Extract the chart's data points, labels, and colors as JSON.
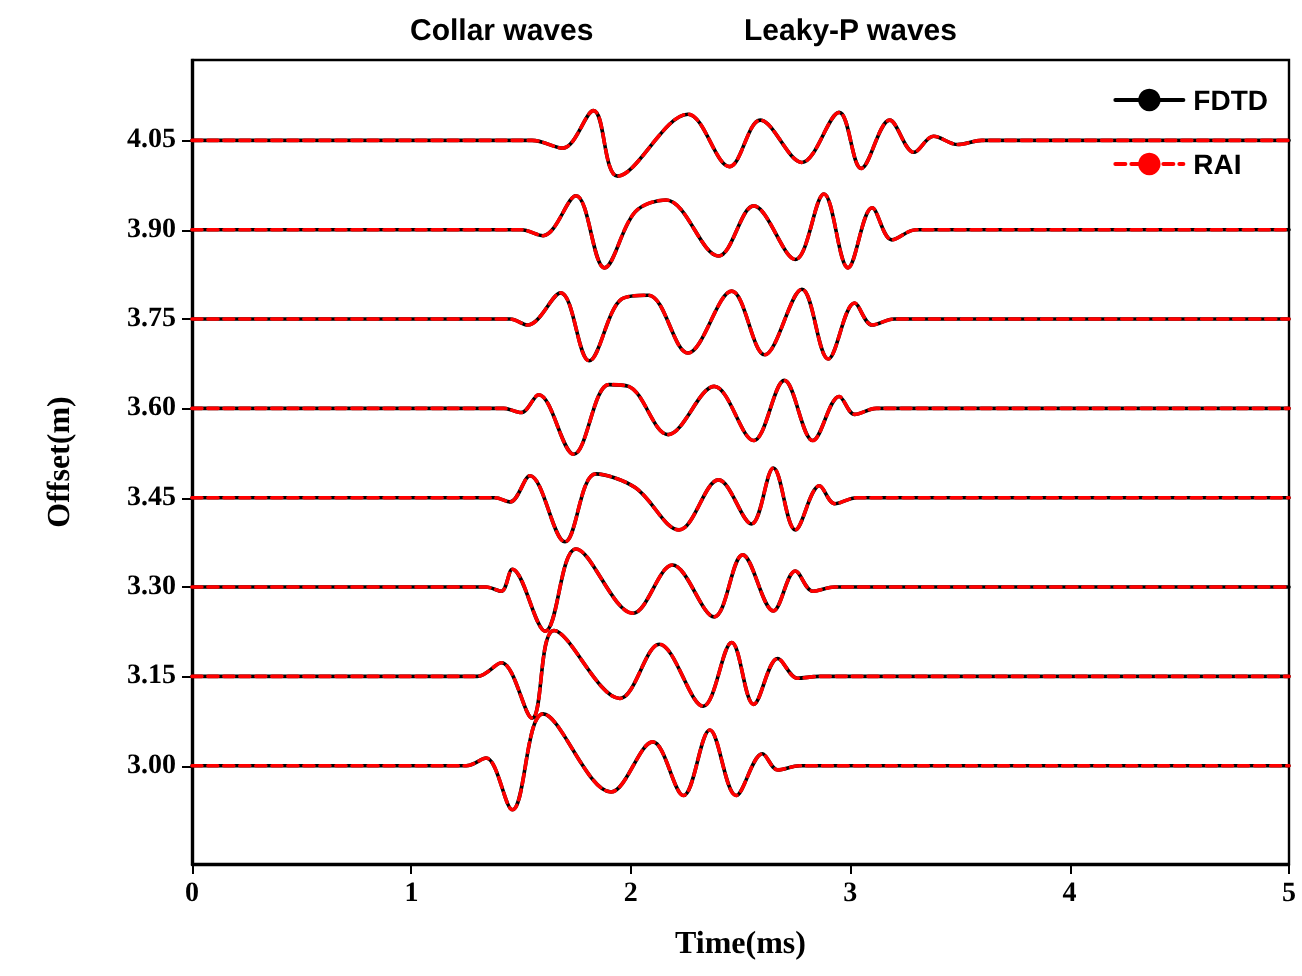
{
  "chart_data": {
    "type": "line",
    "xlabel": "Time(ms)",
    "ylabel": "Offset(m)",
    "annotations": [
      "Collar waves",
      "Leaky-P waves"
    ],
    "xlim": [
      0,
      5
    ],
    "xticks": [
      0,
      1,
      2,
      3,
      4,
      5
    ],
    "ylim": [
      2.835,
      4.185
    ],
    "yticks": [
      {
        "value": 3,
        "label": "3.00"
      },
      {
        "value": 3.15,
        "label": "3.15"
      },
      {
        "value": 3.3,
        "label": "3.30"
      },
      {
        "value": 3.45,
        "label": "3.45"
      },
      {
        "value": 3.6,
        "label": "3.60"
      },
      {
        "value": 3.75,
        "label": "3.75"
      },
      {
        "value": 3.9,
        "label": "3.90"
      },
      {
        "value": 4.05,
        "label": "4.05"
      }
    ],
    "grid": false,
    "legend": "top right",
    "marker": "none",
    "series": [
      {
        "name": "FDTD",
        "color": "#000000",
        "line_style": "solid",
        "x": [
          0,
          1.55,
          1.69,
          1.83,
          1.94,
          2.26,
          2.45,
          2.59,
          2.78,
          2.95,
          3.05,
          3.18,
          3.29,
          3.38,
          3.49,
          3.6,
          5,
          null,
          0,
          1.5,
          1.6,
          1.75,
          1.88,
          2.02,
          2.16,
          2.4,
          2.56,
          2.75,
          2.88,
          2.99,
          3.1,
          3.19,
          3.3,
          5,
          null,
          0,
          1.45,
          1.53,
          1.68,
          1.81,
          1.96,
          2.08,
          2.26,
          2.46,
          2.61,
          2.78,
          2.9,
          3.02,
          3.1,
          3.2,
          5,
          null,
          0,
          1.42,
          1.5,
          1.58,
          1.74,
          1.9,
          1.99,
          2.17,
          2.38,
          2.56,
          2.7,
          2.83,
          2.95,
          3.02,
          3.12,
          5,
          null,
          0,
          1.38,
          1.45,
          1.54,
          1.7,
          1.84,
          2.02,
          2.22,
          2.4,
          2.55,
          2.65,
          2.75,
          2.86,
          2.93,
          3.03,
          5,
          null,
          0,
          1.34,
          1.41,
          1.46,
          1.61,
          1.75,
          2.01,
          2.19,
          2.38,
          2.51,
          2.65,
          2.75,
          2.83,
          2.93,
          5,
          null,
          0,
          1.3,
          1.41,
          1.55,
          1.65,
          1.95,
          2.13,
          2.33,
          2.46,
          2.56,
          2.67,
          2.76,
          2.86,
          5,
          null,
          0,
          1.25,
          1.34,
          1.46,
          1.6,
          1.91,
          2.1,
          2.24,
          2.36,
          2.48,
          2.6,
          2.67,
          2.77,
          5
        ],
        "values": [
          4.05,
          4.05,
          4.037,
          4.1,
          3.99,
          4.094,
          4.006,
          4.084,
          4.013,
          4.097,
          4.003,
          4.084,
          4.03,
          4.057,
          4.043,
          4.05,
          4.05,
          null,
          3.9,
          3.9,
          3.89,
          3.957,
          3.836,
          3.93,
          3.95,
          3.856,
          3.94,
          3.85,
          3.96,
          3.836,
          3.937,
          3.883,
          3.9,
          3.9,
          null,
          3.75,
          3.75,
          3.74,
          3.794,
          3.68,
          3.784,
          3.79,
          3.693,
          3.797,
          3.69,
          3.8,
          3.683,
          3.777,
          3.74,
          3.75,
          3.75,
          null,
          3.6,
          3.6,
          3.593,
          3.623,
          3.523,
          3.64,
          3.637,
          3.556,
          3.637,
          3.546,
          3.647,
          3.546,
          3.62,
          3.59,
          3.6,
          3.6,
          null,
          3.45,
          3.45,
          3.443,
          3.487,
          3.376,
          3.49,
          3.467,
          3.396,
          3.48,
          3.406,
          3.5,
          3.396,
          3.47,
          3.44,
          3.45,
          3.45,
          null,
          3.3,
          3.3,
          3.293,
          3.33,
          3.226,
          3.364,
          3.256,
          3.337,
          3.25,
          3.354,
          3.26,
          3.327,
          3.293,
          3.3,
          3.3,
          null,
          3.15,
          3.15,
          3.173,
          3.08,
          3.227,
          3.113,
          3.204,
          3.1,
          3.207,
          3.103,
          3.18,
          3.147,
          3.15,
          3.15,
          null,
          3,
          3,
          3.013,
          2.926,
          3.087,
          2.956,
          3.04,
          2.95,
          3.06,
          2.95,
          3.02,
          2.993,
          3,
          3
        ]
      },
      {
        "name": "RAI",
        "color": "#ff0000",
        "line_style": "dashed",
        "x": [
          0,
          1.55,
          1.69,
          1.83,
          1.94,
          2.26,
          2.45,
          2.59,
          2.78,
          2.95,
          3.05,
          3.18,
          3.29,
          3.38,
          3.49,
          3.6,
          5,
          null,
          0,
          1.5,
          1.6,
          1.75,
          1.88,
          2.02,
          2.16,
          2.4,
          2.56,
          2.75,
          2.88,
          2.99,
          3.1,
          3.19,
          3.3,
          5,
          null,
          0,
          1.45,
          1.53,
          1.68,
          1.81,
          1.96,
          2.08,
          2.26,
          2.46,
          2.61,
          2.78,
          2.9,
          3.02,
          3.1,
          3.2,
          5,
          null,
          0,
          1.42,
          1.5,
          1.58,
          1.74,
          1.9,
          1.99,
          2.17,
          2.38,
          2.56,
          2.7,
          2.83,
          2.95,
          3.02,
          3.12,
          5,
          null,
          0,
          1.38,
          1.45,
          1.54,
          1.7,
          1.84,
          2.02,
          2.22,
          2.4,
          2.55,
          2.65,
          2.75,
          2.86,
          2.93,
          3.03,
          5,
          null,
          0,
          1.34,
          1.41,
          1.46,
          1.61,
          1.75,
          2.01,
          2.19,
          2.38,
          2.51,
          2.65,
          2.75,
          2.83,
          2.93,
          5,
          null,
          0,
          1.3,
          1.41,
          1.55,
          1.65,
          1.95,
          2.13,
          2.33,
          2.46,
          2.56,
          2.67,
          2.76,
          2.86,
          5,
          null,
          0,
          1.25,
          1.34,
          1.46,
          1.6,
          1.91,
          2.1,
          2.24,
          2.36,
          2.48,
          2.6,
          2.67,
          2.77,
          5
        ],
        "values": [
          4.05,
          4.05,
          4.037,
          4.1,
          3.99,
          4.094,
          4.006,
          4.084,
          4.013,
          4.097,
          4.003,
          4.084,
          4.03,
          4.057,
          4.043,
          4.05,
          4.05,
          null,
          3.9,
          3.9,
          3.89,
          3.957,
          3.836,
          3.93,
          3.95,
          3.856,
          3.94,
          3.85,
          3.96,
          3.836,
          3.937,
          3.883,
          3.9,
          3.9,
          null,
          3.75,
          3.75,
          3.74,
          3.794,
          3.68,
          3.784,
          3.79,
          3.693,
          3.797,
          3.69,
          3.8,
          3.683,
          3.777,
          3.74,
          3.75,
          3.75,
          null,
          3.6,
          3.6,
          3.593,
          3.623,
          3.523,
          3.64,
          3.637,
          3.556,
          3.637,
          3.546,
          3.647,
          3.546,
          3.62,
          3.59,
          3.6,
          3.6,
          null,
          3.45,
          3.45,
          3.443,
          3.487,
          3.376,
          3.49,
          3.467,
          3.396,
          3.48,
          3.406,
          3.5,
          3.396,
          3.47,
          3.44,
          3.45,
          3.45,
          null,
          3.3,
          3.3,
          3.293,
          3.33,
          3.226,
          3.364,
          3.256,
          3.337,
          3.25,
          3.354,
          3.26,
          3.327,
          3.293,
          3.3,
          3.3,
          null,
          3.15,
          3.15,
          3.173,
          3.08,
          3.227,
          3.113,
          3.204,
          3.1,
          3.207,
          3.103,
          3.18,
          3.147,
          3.15,
          3.15,
          null,
          3,
          3,
          3.013,
          2.926,
          3.087,
          2.956,
          3.04,
          2.95,
          3.06,
          2.95,
          3.02,
          2.993,
          3,
          3
        ]
      }
    ]
  }
}
